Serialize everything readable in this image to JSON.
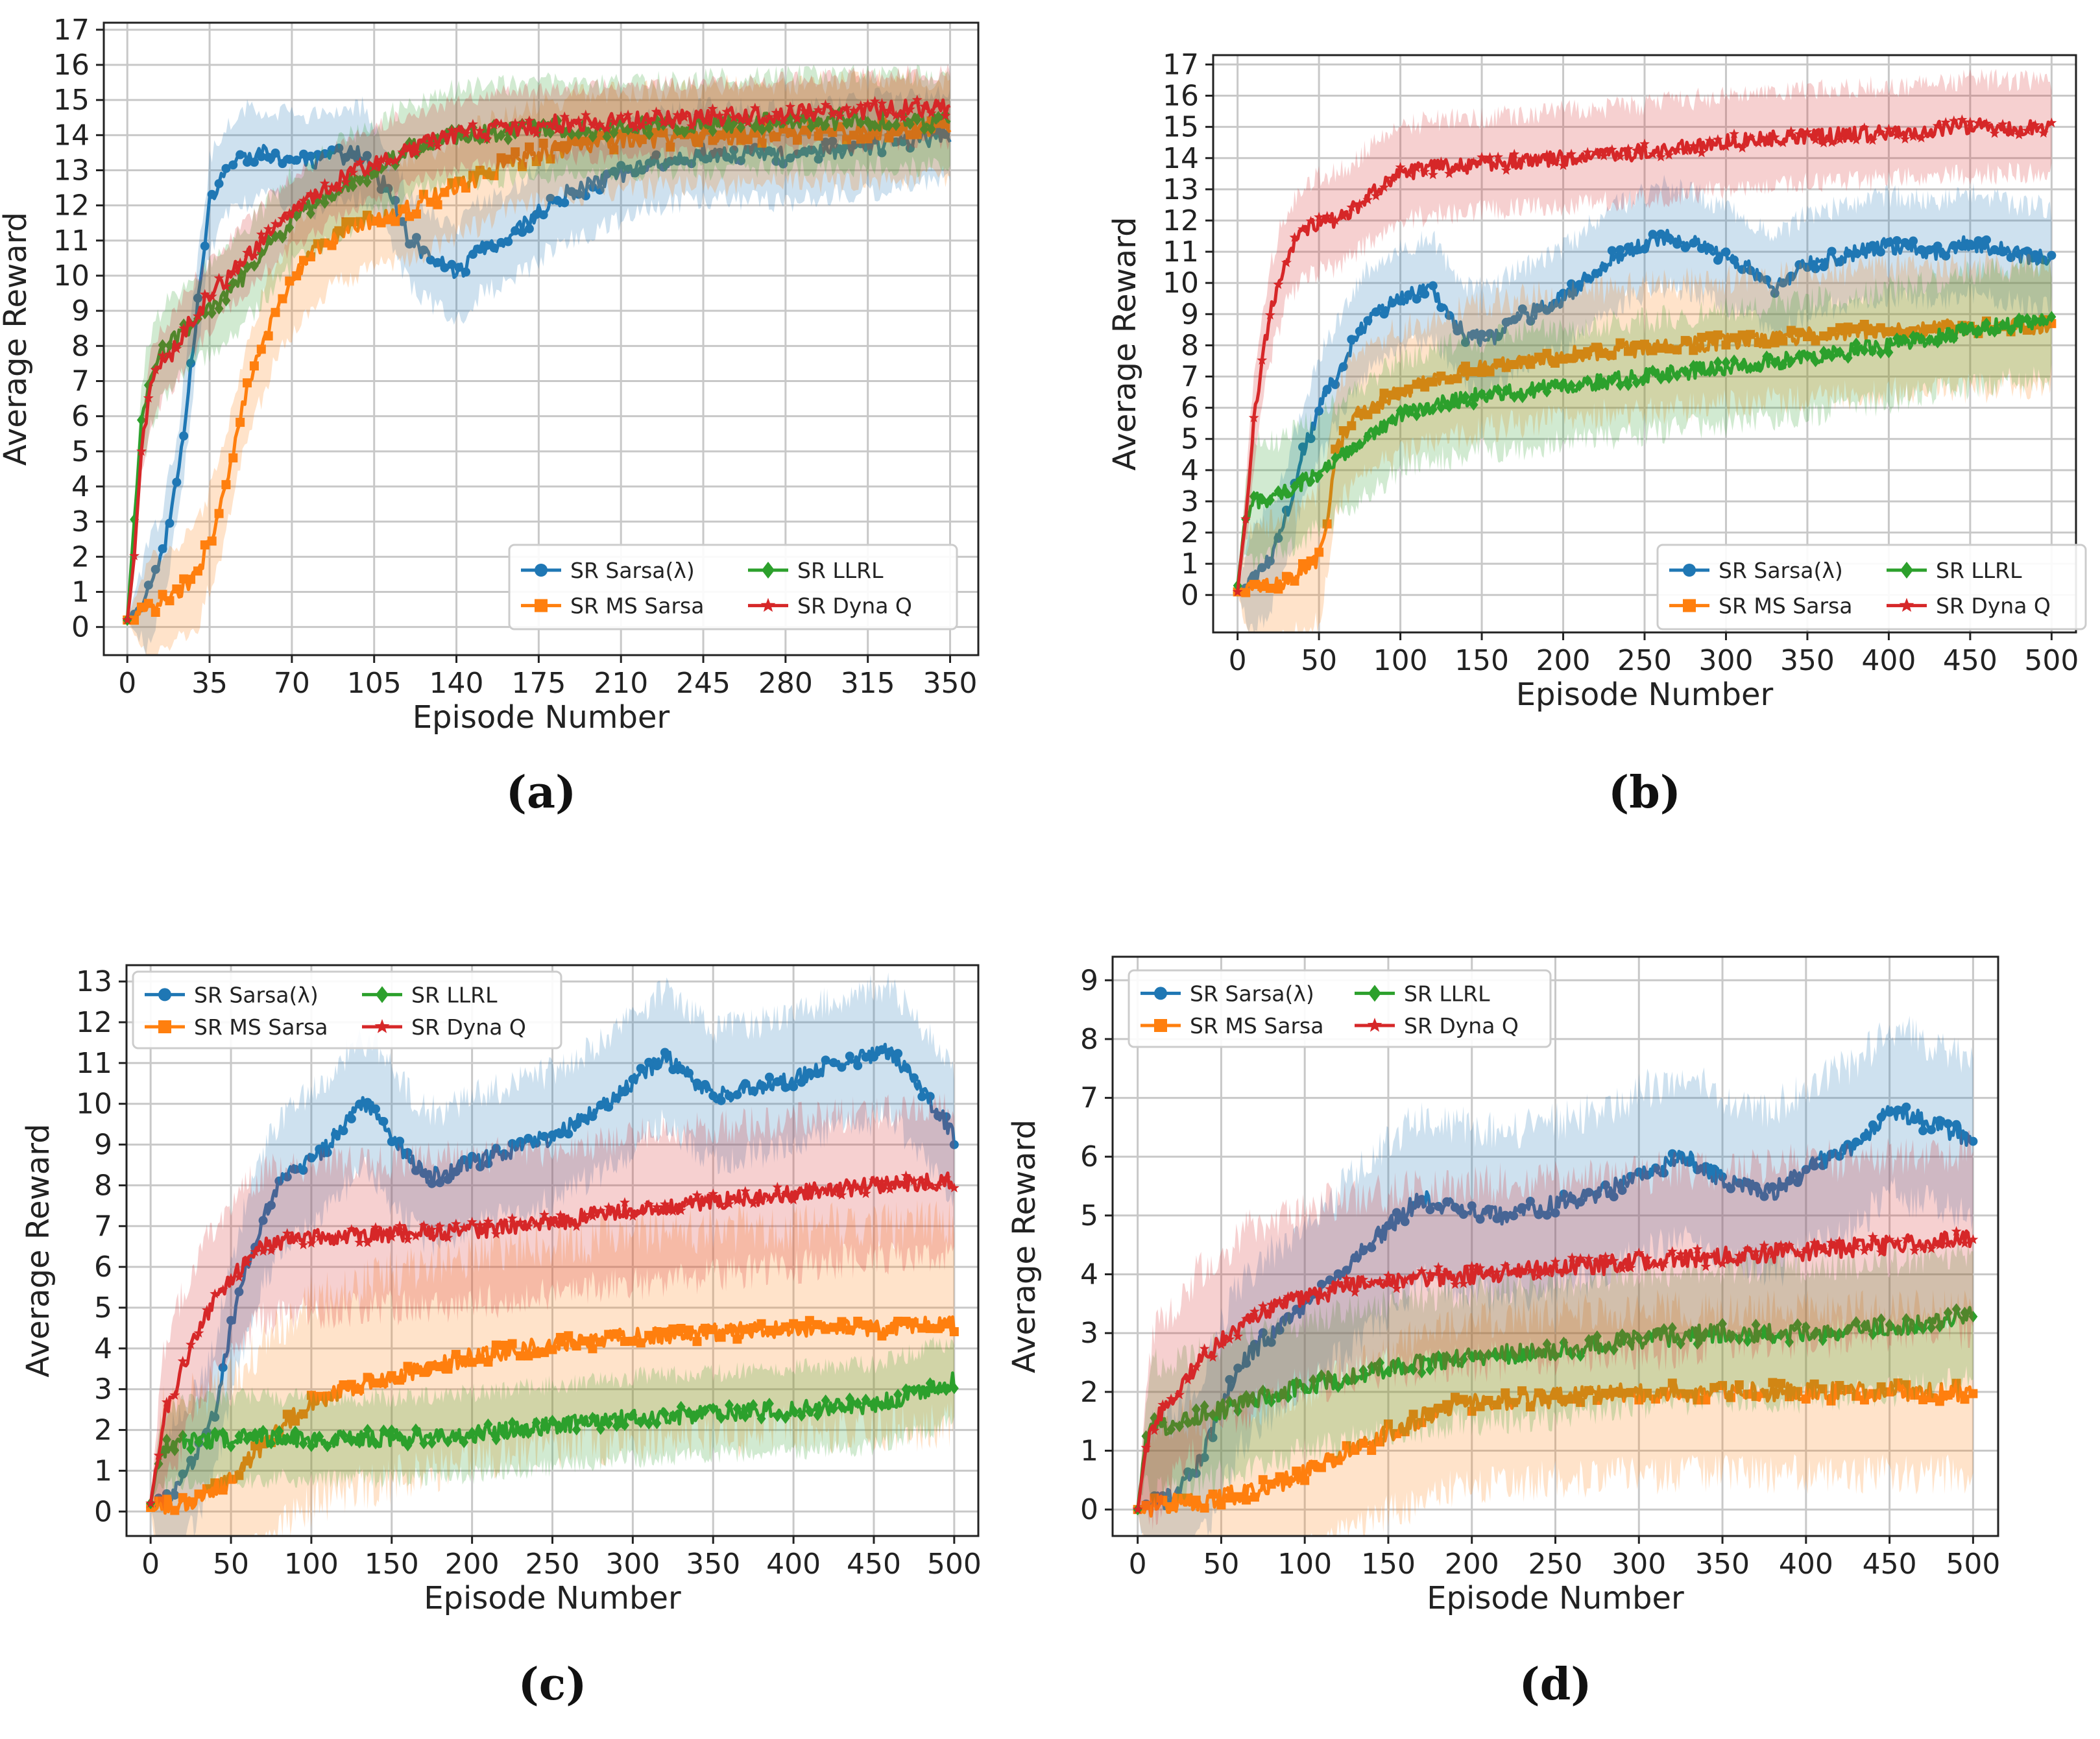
{
  "colors": {
    "sarsa_lambda": "#1f77b4",
    "ms_sarsa": "#ff7f0e",
    "llrl": "#2ca02c",
    "dyna_q": "#d62728"
  },
  "chart_data": [
    {
      "type": "line",
      "caption": "(a)",
      "xlabel": "Episode Number",
      "ylabel": "Average Reward",
      "xlim": [
        -10,
        362
      ],
      "ylim": [
        -0.8,
        17.2
      ],
      "xticks": [
        0,
        35,
        70,
        105,
        140,
        175,
        210,
        245,
        280,
        315,
        350
      ],
      "yticks": [
        0,
        1,
        2,
        3,
        4,
        5,
        6,
        7,
        8,
        9,
        10,
        11,
        12,
        13,
        14,
        15,
        16,
        17
      ],
      "grid": true,
      "legend_position": "lower-right",
      "episodes": 350,
      "series": [
        {
          "name": "SR Sarsa(λ)",
          "color": "#1f77b4",
          "marker": "circle",
          "x": [
            0,
            8,
            15,
            22,
            28,
            35,
            42,
            50,
            60,
            70,
            80,
            90,
            100,
            110,
            120,
            130,
            140,
            150,
            160,
            170,
            185,
            200,
            220,
            245,
            280,
            315,
            350
          ],
          "y": [
            0.2,
            0.8,
            2.0,
            4.5,
            8.0,
            12.0,
            13.0,
            13.4,
            13.5,
            13.3,
            13.2,
            13.4,
            13.5,
            12.5,
            11.0,
            10.5,
            10.0,
            10.8,
            11.0,
            11.5,
            12.3,
            12.6,
            13.2,
            13.5,
            13.4,
            13.7,
            14.0
          ],
          "band": 1.3
        },
        {
          "name": "SR MS Sarsa",
          "color": "#ff7f0e",
          "marker": "square",
          "x": [
            0,
            10,
            20,
            30,
            40,
            50,
            60,
            70,
            80,
            90,
            105,
            120,
            140,
            160,
            175,
            200,
            230,
            260,
            300,
            350
          ],
          "y": [
            0.2,
            0.5,
            0.9,
            1.5,
            3.5,
            6.5,
            8.5,
            9.8,
            10.7,
            11.2,
            11.6,
            11.9,
            12.5,
            13.2,
            13.5,
            13.8,
            13.9,
            14.0,
            14.1,
            14.2
          ],
          "band": 1.4
        },
        {
          "name": "SR LLRL",
          "color": "#2ca02c",
          "marker": "diamond",
          "x": [
            0,
            3,
            6,
            10,
            15,
            20,
            30,
            40,
            50,
            60,
            70,
            80,
            90,
            105,
            120,
            140,
            160,
            175,
            210,
            245,
            280,
            315,
            350
          ],
          "y": [
            0.2,
            3.0,
            5.8,
            7.0,
            7.8,
            8.2,
            8.8,
            9.3,
            10.0,
            10.8,
            11.6,
            12.0,
            12.5,
            13.0,
            13.6,
            14.0,
            14.1,
            14.2,
            14.2,
            14.3,
            14.4,
            14.4,
            14.4
          ],
          "band": 1.3
        },
        {
          "name": "SR Dyna Q",
          "color": "#d62728",
          "marker": "star",
          "x": [
            0,
            3,
            6,
            10,
            15,
            20,
            25,
            30,
            40,
            50,
            60,
            70,
            80,
            90,
            105,
            120,
            140,
            160,
            175,
            210,
            245,
            280,
            315,
            350
          ],
          "y": [
            0.2,
            2.0,
            5.0,
            6.8,
            7.5,
            7.9,
            8.5,
            9.0,
            9.8,
            10.5,
            11.2,
            11.8,
            12.2,
            12.7,
            13.2,
            13.6,
            14.0,
            14.2,
            14.3,
            14.4,
            14.5,
            14.6,
            14.7,
            14.8
          ],
          "band": 1.0
        }
      ]
    },
    {
      "type": "line",
      "caption": "(b)",
      "xlabel": "Episode Number",
      "ylabel": "Average Reward",
      "xlim": [
        -15,
        515
      ],
      "ylim": [
        -1.2,
        17.3
      ],
      "xticks": [
        0,
        50,
        100,
        150,
        200,
        250,
        300,
        350,
        400,
        450,
        500
      ],
      "yticks": [
        0,
        1,
        2,
        3,
        4,
        5,
        6,
        7,
        8,
        9,
        10,
        11,
        12,
        13,
        14,
        15,
        16,
        17
      ],
      "grid": true,
      "legend_position": "lower-right",
      "episodes": 500,
      "series": [
        {
          "name": "SR Sarsa(λ)",
          "color": "#1f77b4",
          "marker": "circle",
          "x": [
            0,
            10,
            20,
            30,
            40,
            50,
            60,
            70,
            80,
            100,
            120,
            130,
            140,
            150,
            160,
            170,
            200,
            230,
            260,
            280,
            300,
            320,
            330,
            350,
            400,
            430,
            450,
            480,
            500
          ],
          "y": [
            0.1,
            0.5,
            1.2,
            2.5,
            4.5,
            6.0,
            7.0,
            8.0,
            8.8,
            9.5,
            9.8,
            9.0,
            8.3,
            8.2,
            8.3,
            8.8,
            9.5,
            10.8,
            11.5,
            11.3,
            10.8,
            10.3,
            9.9,
            10.6,
            11.2,
            11.0,
            11.3,
            10.9,
            10.8
          ],
          "band": 1.6
        },
        {
          "name": "SR MS Sarsa",
          "color": "#ff7f0e",
          "marker": "square",
          "x": [
            0,
            10,
            20,
            30,
            40,
            50,
            55,
            60,
            70,
            80,
            100,
            130,
            150,
            200,
            250,
            300,
            350,
            400,
            450,
            500
          ],
          "y": [
            0.1,
            0.2,
            0.3,
            0.5,
            0.8,
            1.2,
            2.5,
            4.5,
            5.6,
            6.0,
            6.5,
            7.0,
            7.3,
            7.7,
            7.9,
            8.1,
            8.3,
            8.5,
            8.6,
            8.6
          ],
          "band": 2.0
        },
        {
          "name": "SR LLRL",
          "color": "#2ca02c",
          "marker": "diamond",
          "x": [
            0,
            5,
            10,
            20,
            30,
            40,
            50,
            60,
            80,
            100,
            130,
            150,
            200,
            250,
            300,
            350,
            400,
            450,
            500
          ],
          "y": [
            0.3,
            2.5,
            3.0,
            3.1,
            3.3,
            3.6,
            3.9,
            4.3,
            5.0,
            5.8,
            6.2,
            6.4,
            6.7,
            7.0,
            7.3,
            7.6,
            8.0,
            8.5,
            8.8
          ],
          "band": 1.8
        },
        {
          "name": "SR Dyna Q",
          "color": "#d62728",
          "marker": "star",
          "x": [
            0,
            5,
            10,
            15,
            20,
            25,
            30,
            40,
            50,
            60,
            70,
            80,
            100,
            120,
            150,
            200,
            250,
            300,
            350,
            400,
            450,
            500
          ],
          "y": [
            0.1,
            2.5,
            5.5,
            7.5,
            9.0,
            10.0,
            10.8,
            11.6,
            11.9,
            12.0,
            12.3,
            12.8,
            13.5,
            13.7,
            13.8,
            14.0,
            14.2,
            14.5,
            14.7,
            14.8,
            15.0,
            15.0
          ],
          "band": 1.5
        }
      ]
    },
    {
      "type": "line",
      "caption": "(c)",
      "xlabel": "Episode Number",
      "ylabel": "Average Reward",
      "xlim": [
        -15,
        515
      ],
      "ylim": [
        -0.6,
        13.4
      ],
      "xticks": [
        0,
        50,
        100,
        150,
        200,
        250,
        300,
        350,
        400,
        450,
        500
      ],
      "yticks": [
        0,
        1,
        2,
        3,
        4,
        5,
        6,
        7,
        8,
        9,
        10,
        11,
        12,
        13
      ],
      "grid": true,
      "legend_position": "upper-left",
      "episodes": 500,
      "series": [
        {
          "name": "SR Sarsa(λ)",
          "color": "#1f77b4",
          "marker": "circle",
          "x": [
            0,
            10,
            20,
            30,
            40,
            50,
            60,
            70,
            80,
            90,
            100,
            110,
            120,
            130,
            140,
            150,
            160,
            170,
            180,
            200,
            220,
            250,
            280,
            300,
            320,
            330,
            350,
            380,
            400,
            420,
            440,
            460,
            470,
            480,
            490,
            500
          ],
          "y": [
            0.1,
            0.3,
            0.8,
            1.5,
            2.5,
            4.5,
            6.0,
            7.2,
            8.0,
            8.4,
            8.6,
            9.0,
            9.5,
            10.0,
            9.8,
            9.2,
            8.7,
            8.3,
            8.2,
            8.6,
            8.8,
            9.2,
            9.9,
            10.5,
            11.2,
            10.8,
            10.2,
            10.4,
            10.6,
            10.9,
            11.1,
            11.3,
            10.8,
            10.3,
            9.8,
            9.2
          ],
          "band": 1.6
        },
        {
          "name": "SR MS Sarsa",
          "color": "#ff7f0e",
          "marker": "square",
          "x": [
            0,
            20,
            40,
            50,
            60,
            70,
            80,
            100,
            150,
            200,
            250,
            300,
            350,
            400,
            450,
            500
          ],
          "y": [
            0.1,
            0.2,
            0.5,
            0.8,
            1.2,
            1.6,
            2.0,
            2.7,
            3.3,
            3.8,
            4.1,
            4.3,
            4.4,
            4.5,
            4.5,
            4.6
          ],
          "band": 2.5
        },
        {
          "name": "SR LLRL",
          "color": "#2ca02c",
          "marker": "diamond",
          "x": [
            0,
            5,
            10,
            20,
            50,
            100,
            150,
            200,
            250,
            300,
            350,
            400,
            450,
            500
          ],
          "y": [
            0.2,
            1.3,
            1.6,
            1.7,
            1.8,
            1.8,
            1.8,
            1.9,
            2.1,
            2.3,
            2.4,
            2.5,
            2.6,
            3.2
          ],
          "band": 1.0
        },
        {
          "name": "SR Dyna Q",
          "color": "#d62728",
          "marker": "star",
          "x": [
            0,
            5,
            10,
            20,
            30,
            40,
            50,
            60,
            70,
            80,
            100,
            150,
            200,
            250,
            300,
            350,
            400,
            450,
            500
          ],
          "y": [
            0.2,
            1.5,
            2.5,
            3.5,
            4.5,
            5.2,
            5.7,
            6.2,
            6.5,
            6.6,
            6.7,
            6.8,
            6.9,
            7.1,
            7.4,
            7.6,
            7.8,
            8.0,
            8.1
          ],
          "band": 1.8
        }
      ]
    },
    {
      "type": "line",
      "caption": "(d)",
      "xlabel": "Episode Number",
      "ylabel": "Average Reward",
      "xlim": [
        -15,
        515
      ],
      "ylim": [
        -0.45,
        9.4
      ],
      "xticks": [
        0,
        50,
        100,
        150,
        200,
        250,
        300,
        350,
        400,
        450,
        500
      ],
      "yticks": [
        0,
        1,
        2,
        3,
        4,
        5,
        6,
        7,
        8,
        9
      ],
      "grid": true,
      "legend_position": "upper-left",
      "episodes": 500,
      "series": [
        {
          "name": "SR Sarsa(λ)",
          "color": "#1f77b4",
          "marker": "circle",
          "x": [
            0,
            10,
            20,
            30,
            40,
            50,
            60,
            80,
            100,
            120,
            150,
            170,
            180,
            200,
            220,
            250,
            280,
            300,
            330,
            350,
            380,
            400,
            430,
            450,
            470,
            490,
            500
          ],
          "y": [
            0.0,
            0.1,
            0.2,
            0.5,
            1.0,
            1.7,
            2.4,
            3.0,
            3.4,
            4.0,
            4.8,
            5.3,
            5.2,
            5.1,
            5.0,
            5.2,
            5.4,
            5.7,
            6.0,
            5.6,
            5.4,
            5.8,
            6.2,
            6.8,
            6.6,
            6.4,
            6.3
          ],
          "band": 1.4
        },
        {
          "name": "SR MS Sarsa",
          "color": "#ff7f0e",
          "marker": "square",
          "x": [
            0,
            20,
            50,
            80,
            100,
            120,
            150,
            180,
            200,
            250,
            300,
            350,
            400,
            450,
            500
          ],
          "y": [
            0.0,
            0.1,
            0.2,
            0.4,
            0.6,
            0.9,
            1.3,
            1.7,
            1.8,
            1.9,
            2.0,
            2.0,
            2.0,
            2.0,
            2.0
          ],
          "band": 1.4
        },
        {
          "name": "SR LLRL",
          "color": "#2ca02c",
          "marker": "diamond",
          "x": [
            0,
            5,
            10,
            20,
            50,
            100,
            150,
            200,
            250,
            300,
            350,
            400,
            450,
            500
          ],
          "y": [
            0.0,
            1.2,
            1.4,
            1.4,
            1.7,
            2.1,
            2.4,
            2.6,
            2.7,
            2.9,
            3.0,
            3.0,
            3.1,
            3.3
          ],
          "band": 1.1
        },
        {
          "name": "SR Dyna Q",
          "color": "#d62728",
          "marker": "star",
          "x": [
            0,
            5,
            10,
            20,
            30,
            40,
            50,
            70,
            100,
            130,
            150,
            200,
            250,
            300,
            350,
            400,
            450,
            500
          ],
          "y": [
            0.0,
            1.0,
            1.5,
            1.9,
            2.3,
            2.6,
            2.9,
            3.3,
            3.6,
            3.8,
            3.9,
            4.0,
            4.1,
            4.2,
            4.3,
            4.4,
            4.5,
            4.6
          ],
          "band": 1.5
        }
      ]
    }
  ]
}
